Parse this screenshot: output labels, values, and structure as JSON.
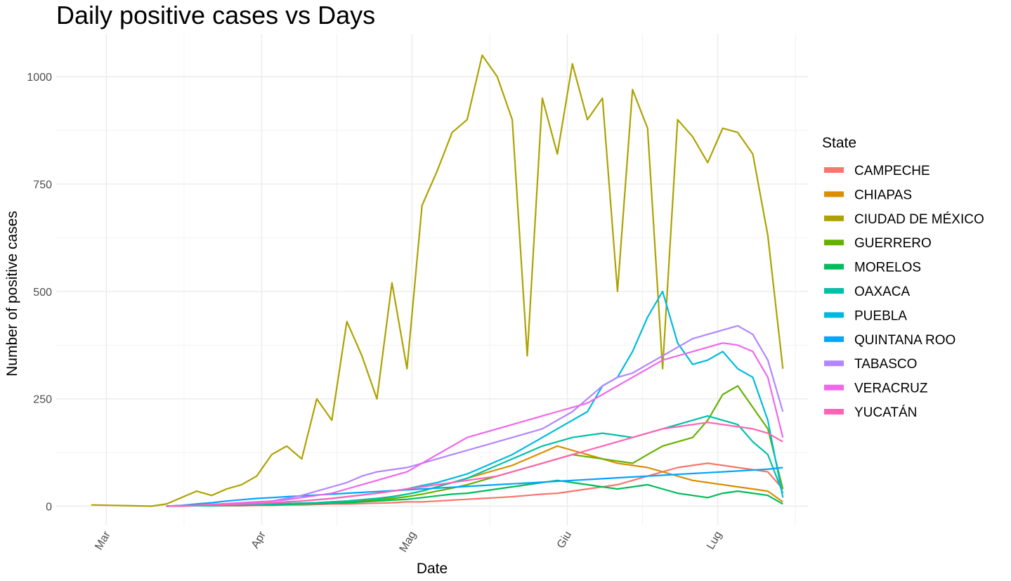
{
  "chart_data": {
    "type": "line",
    "title": "Daily positive cases vs Days",
    "xlabel": "Date",
    "ylabel": "Number of positive cases",
    "x_ticks": [
      "Mar",
      "Apr",
      "Mag",
      "Giu",
      "Lug"
    ],
    "x_tick_dates": [
      "2020-03-01",
      "2020-04-01",
      "2020-05-01",
      "2020-06-01",
      "2020-07-01"
    ],
    "x_range": [
      "2020-02-20",
      "2020-07-19"
    ],
    "y_ticks": [
      0,
      250,
      500,
      750,
      1000
    ],
    "ylim": [
      -45,
      1100
    ],
    "grid": true,
    "legend": {
      "title": "State",
      "position": "right"
    },
    "x": [
      "2020-02-27",
      "2020-03-02",
      "2020-03-06",
      "2020-03-10",
      "2020-03-13",
      "2020-03-16",
      "2020-03-19",
      "2020-03-22",
      "2020-03-25",
      "2020-03-28",
      "2020-03-31",
      "2020-04-03",
      "2020-04-06",
      "2020-04-09",
      "2020-04-12",
      "2020-04-15",
      "2020-04-18",
      "2020-04-21",
      "2020-04-24",
      "2020-04-27",
      "2020-04-30",
      "2020-05-03",
      "2020-05-06",
      "2020-05-09",
      "2020-05-12",
      "2020-05-15",
      "2020-05-18",
      "2020-05-21",
      "2020-05-24",
      "2020-05-27",
      "2020-05-30",
      "2020-06-02",
      "2020-06-05",
      "2020-06-08",
      "2020-06-11",
      "2020-06-14",
      "2020-06-17",
      "2020-06-20",
      "2020-06-23",
      "2020-06-26",
      "2020-06-29",
      "2020-07-02",
      "2020-07-05",
      "2020-07-08",
      "2020-07-11",
      "2020-07-14"
    ],
    "series": [
      {
        "name": "CAMPECHE",
        "color": "#F8766D",
        "values": [
          null,
          null,
          null,
          null,
          0,
          0,
          1,
          1,
          1,
          1,
          2,
          2,
          3,
          3,
          4,
          5,
          5,
          6,
          7,
          8,
          10,
          10,
          12,
          14,
          16,
          18,
          20,
          22,
          25,
          28,
          30,
          35,
          40,
          45,
          50,
          60,
          70,
          80,
          90,
          95,
          100,
          95,
          90,
          85,
          80,
          40
        ]
      },
      {
        "name": "CHIAPAS",
        "color": "#DB8E00",
        "values": [
          null,
          null,
          null,
          null,
          0,
          1,
          2,
          2,
          3,
          3,
          4,
          5,
          6,
          7,
          8,
          10,
          12,
          15,
          18,
          22,
          28,
          35,
          45,
          55,
          65,
          75,
          85,
          95,
          110,
          125,
          140,
          130,
          120,
          110,
          100,
          95,
          90,
          80,
          70,
          60,
          55,
          50,
          45,
          40,
          35,
          10
        ]
      },
      {
        "name": "CIUDAD DE MÉXICO",
        "color": "#AEA200",
        "values": [
          3,
          2,
          1,
          0,
          5,
          20,
          35,
          25,
          40,
          50,
          70,
          120,
          140,
          110,
          250,
          200,
          430,
          350,
          250,
          520,
          320,
          700,
          780,
          870,
          900,
          1050,
          1000,
          900,
          350,
          950,
          820,
          1030,
          900,
          950,
          500,
          970,
          880,
          320,
          900,
          860,
          800,
          880,
          870,
          820,
          630,
          320
        ]
      },
      {
        "name": "GUERRERO",
        "color": "#64B200",
        "values": [
          null,
          null,
          null,
          null,
          0,
          1,
          1,
          2,
          2,
          3,
          3,
          4,
          5,
          6,
          7,
          8,
          10,
          12,
          15,
          18,
          22,
          28,
          35,
          42,
          50,
          60,
          70,
          80,
          90,
          100,
          110,
          120,
          115,
          110,
          105,
          100,
          120,
          140,
          150,
          160,
          200,
          260,
          280,
          230,
          180,
          40
        ]
      },
      {
        "name": "MORELOS",
        "color": "#00BD5C",
        "values": [
          null,
          null,
          null,
          null,
          0,
          1,
          1,
          1,
          2,
          2,
          3,
          3,
          4,
          5,
          6,
          7,
          8,
          10,
          12,
          14,
          16,
          20,
          24,
          28,
          30,
          35,
          40,
          45,
          50,
          55,
          60,
          55,
          50,
          45,
          40,
          45,
          50,
          40,
          30,
          25,
          20,
          30,
          35,
          30,
          25,
          5
        ]
      },
      {
        "name": "OAXACA",
        "color": "#00C1A7",
        "values": [
          null,
          null,
          null,
          null,
          0,
          1,
          1,
          2,
          2,
          3,
          4,
          5,
          6,
          7,
          8,
          10,
          12,
          15,
          18,
          22,
          28,
          35,
          45,
          55,
          65,
          80,
          95,
          110,
          125,
          140,
          150,
          160,
          165,
          170,
          165,
          160,
          170,
          180,
          190,
          200,
          210,
          200,
          190,
          150,
          120,
          30
        ]
      },
      {
        "name": "PUEBLA",
        "color": "#00BADE",
        "values": [
          null,
          null,
          null,
          null,
          0,
          1,
          2,
          3,
          4,
          5,
          6,
          8,
          10,
          12,
          15,
          18,
          22,
          26,
          30,
          35,
          40,
          48,
          55,
          65,
          75,
          90,
          105,
          120,
          140,
          160,
          180,
          200,
          220,
          280,
          300,
          360,
          440,
          500,
          380,
          330,
          340,
          360,
          320,
          300,
          200,
          20
        ]
      },
      {
        "name": "QUINTANA ROO",
        "color": "#00A6FF",
        "values": [
          null,
          null,
          null,
          null,
          0,
          2,
          5,
          8,
          12,
          15,
          18,
          20,
          22,
          24,
          26,
          28,
          30,
          32,
          34,
          36,
          38,
          40,
          42,
          44,
          46,
          48,
          50,
          52,
          54,
          56,
          58,
          60,
          62,
          64,
          66,
          68,
          70,
          72,
          74,
          76,
          78,
          80,
          82,
          84,
          86,
          90
        ]
      },
      {
        "name": "TABASCO",
        "color": "#B385FF",
        "values": [
          null,
          null,
          null,
          null,
          0,
          1,
          2,
          3,
          4,
          5,
          8,
          12,
          18,
          25,
          35,
          45,
          55,
          70,
          80,
          85,
          90,
          100,
          110,
          120,
          130,
          140,
          150,
          160,
          170,
          180,
          200,
          220,
          250,
          280,
          300,
          310,
          330,
          350,
          370,
          390,
          400,
          410,
          420,
          400,
          340,
          220
        ]
      },
      {
        "name": "VERACRUZ",
        "color": "#EF67EB",
        "values": [
          null,
          null,
          null,
          null,
          0,
          1,
          2,
          4,
          6,
          8,
          10,
          12,
          15,
          20,
          25,
          30,
          40,
          50,
          60,
          70,
          80,
          100,
          120,
          140,
          160,
          170,
          180,
          190,
          200,
          210,
          220,
          230,
          240,
          260,
          280,
          300,
          320,
          340,
          350,
          360,
          370,
          380,
          375,
          360,
          300,
          160
        ]
      },
      {
        "name": "YUCATÁN",
        "color": "#FF63B6",
        "values": [
          null,
          null,
          null,
          null,
          0,
          1,
          2,
          3,
          4,
          5,
          6,
          8,
          10,
          12,
          15,
          18,
          22,
          26,
          30,
          35,
          40,
          45,
          50,
          55,
          60,
          65,
          70,
          80,
          90,
          100,
          110,
          120,
          130,
          140,
          150,
          160,
          170,
          180,
          185,
          190,
          195,
          190,
          185,
          180,
          170,
          150
        ]
      }
    ]
  }
}
